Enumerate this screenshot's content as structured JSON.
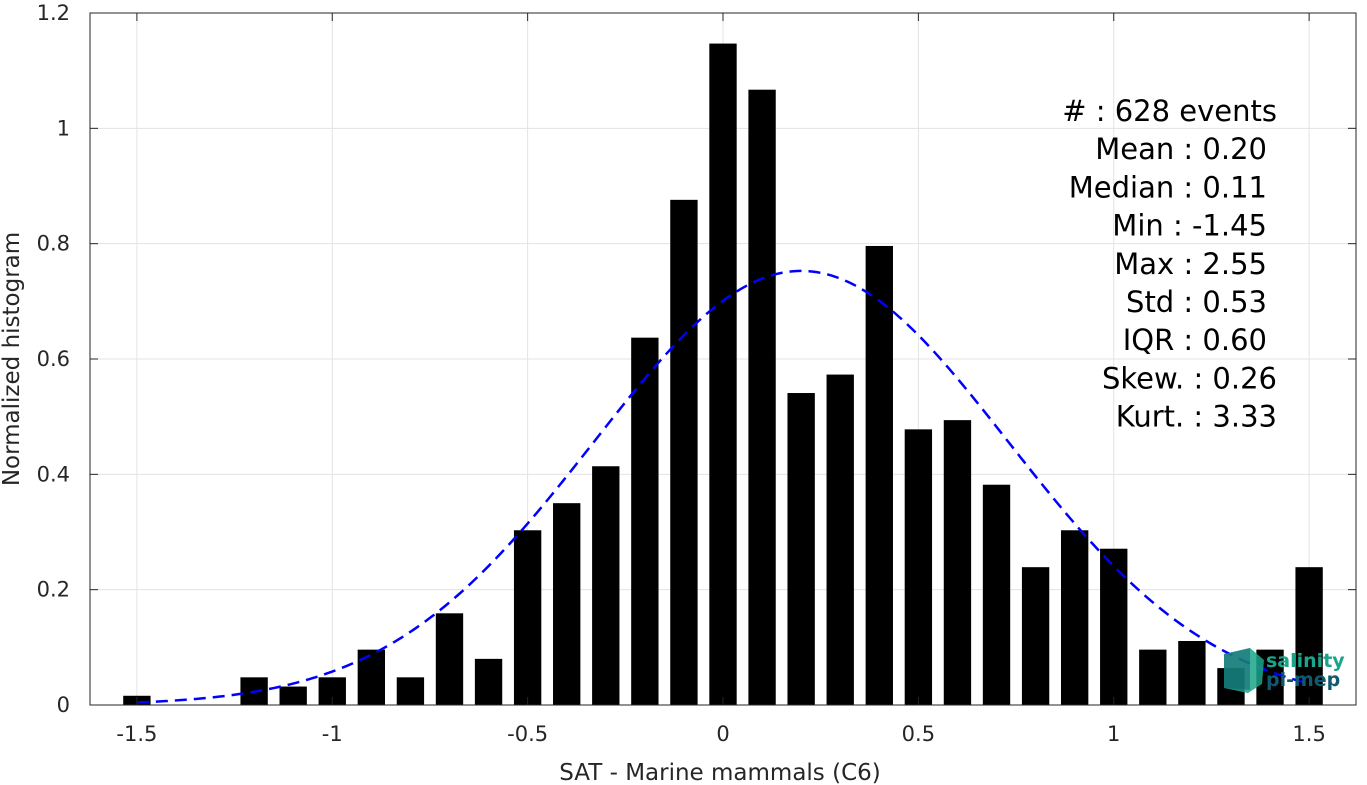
{
  "chart_data": {
    "type": "bar",
    "title": "",
    "xlabel": "SAT - Marine mammals (C6)",
    "ylabel": "Normalized histogram",
    "xlim": [
      -1.62,
      1.62
    ],
    "ylim": [
      0,
      1.2
    ],
    "x_ticks": [
      -1.5,
      -1,
      -0.5,
      0,
      0.5,
      1,
      1.5
    ],
    "x_tick_labels": [
      "-1.5",
      "-1",
      "-0.5",
      "0",
      "0.5",
      "1",
      "1.5"
    ],
    "y_ticks": [
      0,
      0.2,
      0.4,
      0.6,
      0.8,
      1,
      1.2
    ],
    "y_tick_labels": [
      "0",
      "0.2",
      "0.4",
      "0.6",
      "0.8",
      "1",
      "1.2"
    ],
    "grid": true,
    "bar_width": 0.07,
    "bars": [
      {
        "x": -1.5,
        "y": 0.016
      },
      {
        "x": -1.2,
        "y": 0.048
      },
      {
        "x": -1.1,
        "y": 0.032
      },
      {
        "x": -1.0,
        "y": 0.048
      },
      {
        "x": -0.9,
        "y": 0.096
      },
      {
        "x": -0.8,
        "y": 0.048
      },
      {
        "x": -0.7,
        "y": 0.159
      },
      {
        "x": -0.6,
        "y": 0.08
      },
      {
        "x": -0.5,
        "y": 0.303
      },
      {
        "x": -0.4,
        "y": 0.35
      },
      {
        "x": -0.3,
        "y": 0.414
      },
      {
        "x": -0.2,
        "y": 0.637
      },
      {
        "x": -0.1,
        "y": 0.876
      },
      {
        "x": 0.0,
        "y": 1.147
      },
      {
        "x": 0.1,
        "y": 1.067
      },
      {
        "x": 0.2,
        "y": 0.541
      },
      {
        "x": 0.3,
        "y": 0.573
      },
      {
        "x": 0.4,
        "y": 0.796
      },
      {
        "x": 0.5,
        "y": 0.478
      },
      {
        "x": 0.6,
        "y": 0.494
      },
      {
        "x": 0.7,
        "y": 0.382
      },
      {
        "x": 0.8,
        "y": 0.239
      },
      {
        "x": 0.9,
        "y": 0.303
      },
      {
        "x": 1.0,
        "y": 0.271
      },
      {
        "x": 1.1,
        "y": 0.096
      },
      {
        "x": 1.2,
        "y": 0.111
      },
      {
        "x": 1.3,
        "y": 0.064
      },
      {
        "x": 1.4,
        "y": 0.096
      },
      {
        "x": 1.5,
        "y": 0.239
      }
    ],
    "fit_curve": {
      "type": "normal",
      "mean": 0.2,
      "std": 0.53,
      "x_range": [
        -1.5,
        1.5
      ],
      "style": "dashed",
      "color": "#0000ff"
    },
    "bar_color": "#000000",
    "stats": [
      "#  : 628 events",
      "Mean : 0.20",
      "Median : 0.11",
      "Min : -1.45",
      "Max : 2.55",
      "Std : 0.53",
      "IQR : 0.60",
      "Skew. : 0.26",
      "Kurt. : 3.33"
    ]
  },
  "logo": {
    "line1": "salinity",
    "line2": "pi-mep",
    "color1": "#1aa58a",
    "color2": "#0f5a6e"
  }
}
